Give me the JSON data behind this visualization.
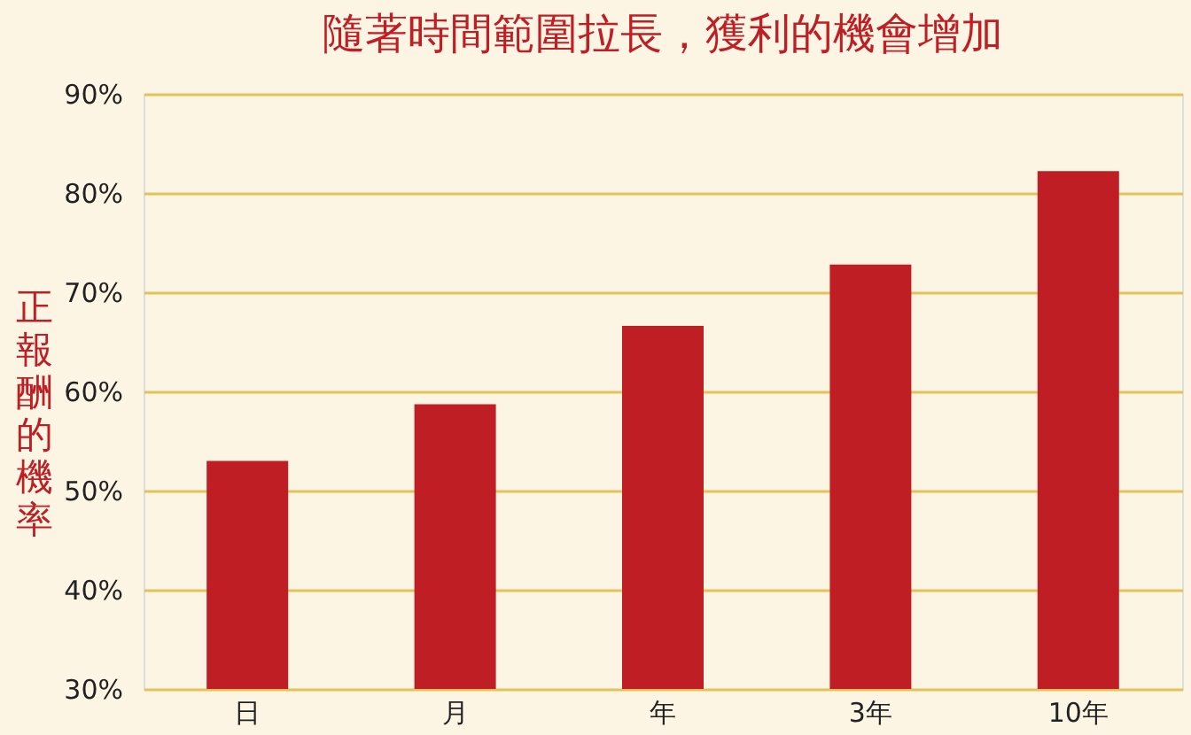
{
  "chart_data": {
    "type": "bar",
    "title": "隨著時間範圍拉長，獲利的機會增加",
    "ylabel": "正報酬的機率",
    "categories": [
      "日",
      "月",
      "年",
      "3年",
      "10年"
    ],
    "series": [
      {
        "color": "#be1e24",
        "values": [
          53.0,
          58.7,
          66.6,
          72.8,
          82.2
        ]
      }
    ],
    "ylim": [
      30,
      90
    ],
    "yticks": [
      {
        "value": 30,
        "label": "30%"
      },
      {
        "value": 40,
        "label": "40%"
      },
      {
        "value": 50,
        "label": "50%"
      },
      {
        "value": 60,
        "label": "60%"
      },
      {
        "value": 70,
        "label": "70%"
      },
      {
        "value": 80,
        "label": "80%"
      },
      {
        "value": 90,
        "label": "90%"
      }
    ],
    "grid": "y"
  }
}
